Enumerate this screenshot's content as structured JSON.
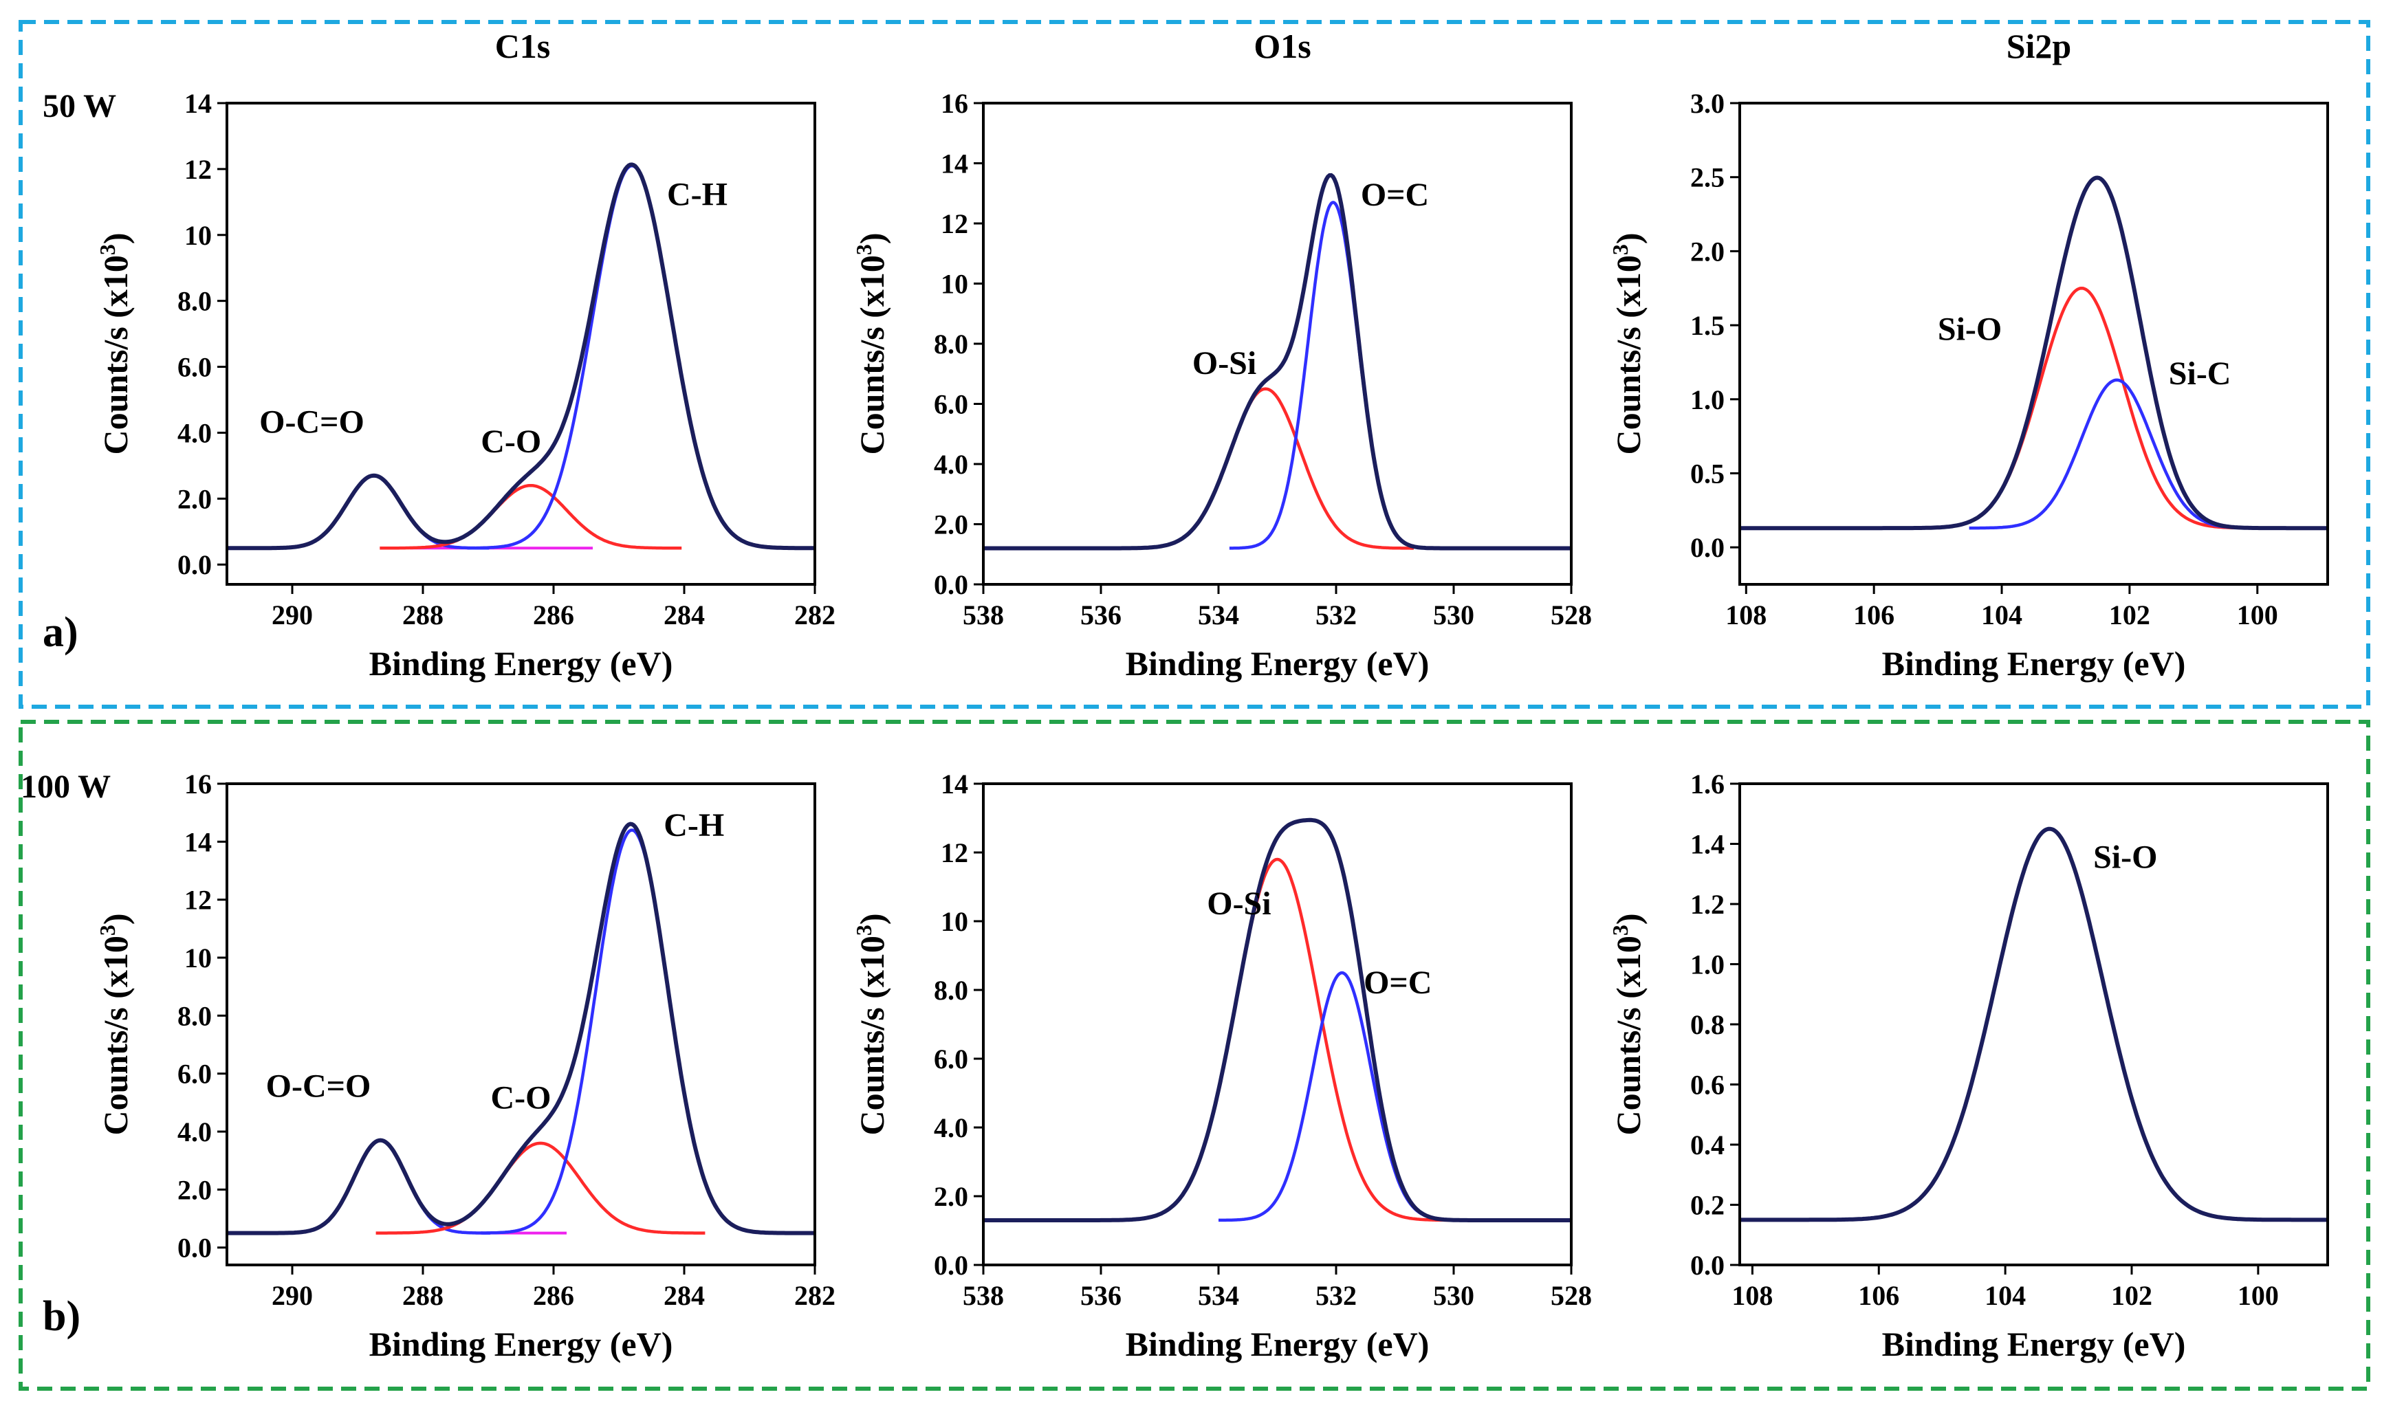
{
  "figure": {
    "column_titles": [
      "C1s",
      "O1s",
      "Si2p"
    ],
    "rows": [
      {
        "power_label": "50 W",
        "panel_label": "a)",
        "border_color": "#1ea8e0"
      },
      {
        "power_label": "100 W",
        "panel_label": "b)",
        "border_color": "#24a24a"
      }
    ],
    "colors": {
      "envelope": "#1b1e5c",
      "red": "#ff2a2a",
      "blue": "#2f2fff",
      "background_line": "#ee22ee"
    }
  },
  "chart_data": [
    {
      "type": "line",
      "title": "C1s",
      "row": 0,
      "col": 0,
      "xlabel": "Binding Energy (eV)",
      "ylabel": "Counts/s (x10",
      "ylabel_sup": "3",
      "ylabel_close": ")",
      "xlim": [
        291,
        282
      ],
      "ylim": [
        -0.6,
        14
      ],
      "xticks": [
        290,
        288,
        286,
        284,
        282
      ],
      "xtick_labels": [
        "290",
        "288",
        "286",
        "284",
        "282"
      ],
      "yticks": [
        0,
        2,
        4,
        6,
        8,
        10,
        12,
        14
      ],
      "ytick_labels": [
        "0.0",
        "2.0",
        "4.0",
        "6.0",
        "8.0",
        "10",
        "12",
        "14"
      ],
      "baseline": 0.5,
      "bg_line": [
        288.2,
        285.4
      ],
      "components": [
        {
          "name": "O-C=O",
          "center": 288.75,
          "height": 2.2,
          "sigma": 0.42,
          "color": "blue"
        },
        {
          "name": "C-O",
          "center": 286.35,
          "height": 1.9,
          "sigma": 0.55,
          "color": "red"
        },
        {
          "name": "C-H",
          "center": 284.8,
          "height": 11.6,
          "sigma": 0.6,
          "color": "blue"
        }
      ],
      "annotations": [
        {
          "text": "O-C=O",
          "x": 289.7,
          "y": 4.0
        },
        {
          "text": "C-O",
          "x": 286.65,
          "y": 3.4
        },
        {
          "text": "C-H",
          "x": 283.8,
          "y": 10.9
        }
      ]
    },
    {
      "type": "line",
      "title": "O1s",
      "row": 0,
      "col": 1,
      "xlabel": "Binding Energy (eV)",
      "ylabel": "Counts/s (x10",
      "ylabel_sup": "3",
      "ylabel_close": ")",
      "xlim": [
        538,
        528
      ],
      "ylim": [
        0,
        16
      ],
      "xticks": [
        538,
        536,
        534,
        532,
        530,
        528
      ],
      "xtick_labels": [
        "538",
        "536",
        "534",
        "532",
        "530",
        "528"
      ],
      "yticks": [
        0,
        2,
        4,
        6,
        8,
        10,
        12,
        14,
        16
      ],
      "ytick_labels": [
        "0.0",
        "2.0",
        "4.0",
        "6.0",
        "8.0",
        "10",
        "12",
        "14",
        "16"
      ],
      "baseline": 1.2,
      "components": [
        {
          "name": "O-Si",
          "center": 533.2,
          "height": 5.3,
          "sigma": 0.6,
          "color": "red"
        },
        {
          "name": "O=C",
          "center": 532.05,
          "height": 11.5,
          "sigma": 0.42,
          "color": "blue"
        }
      ],
      "annotations": [
        {
          "text": "O-Si",
          "x": 533.9,
          "y": 7.0
        },
        {
          "text": "O=C",
          "x": 531.0,
          "y": 12.6
        }
      ]
    },
    {
      "type": "line",
      "title": "Si2p",
      "row": 0,
      "col": 2,
      "xlabel": "Binding Energy (eV)",
      "ylabel": "Counts/s (x10",
      "ylabel_sup": "3",
      "ylabel_close": ")",
      "xlim": [
        108.1,
        98.9
      ],
      "ylim": [
        -0.25,
        3.0
      ],
      "xticks": [
        108,
        106,
        104,
        102,
        100
      ],
      "xtick_labels": [
        "108",
        "106",
        "104",
        "102",
        "100"
      ],
      "yticks": [
        0,
        0.5,
        1.0,
        1.5,
        2.0,
        2.5,
        3.0
      ],
      "ytick_labels": [
        "0.0",
        "0.5",
        "1.0",
        "1.5",
        "2.0",
        "2.5",
        "3.0"
      ],
      "baseline": 0.13,
      "components": [
        {
          "name": "Si-O",
          "center": 102.75,
          "height": 1.62,
          "sigma": 0.65,
          "color": "red"
        },
        {
          "name": "Si-C",
          "center": 102.2,
          "height": 1.0,
          "sigma": 0.55,
          "color": "blue"
        }
      ],
      "annotations": [
        {
          "text": "Si-O",
          "x": 104.5,
          "y": 1.4
        },
        {
          "text": "Si-C",
          "x": 100.9,
          "y": 1.1
        }
      ]
    },
    {
      "type": "line",
      "title": "C1s",
      "row": 1,
      "col": 0,
      "xlabel": "Binding Energy (eV)",
      "ylabel": "Counts/s (x10",
      "ylabel_sup": "3",
      "ylabel_close": ")",
      "xlim": [
        291,
        282
      ],
      "ylim": [
        -0.6,
        16
      ],
      "xticks": [
        290,
        288,
        286,
        284,
        282
      ],
      "xtick_labels": [
        "290",
        "288",
        "286",
        "284",
        "282"
      ],
      "yticks": [
        0,
        2,
        4,
        6,
        8,
        10,
        12,
        14,
        16
      ],
      "ytick_labels": [
        "0.0",
        "2.0",
        "4.0",
        "6.0",
        "8.0",
        "10",
        "12",
        "14",
        "16"
      ],
      "baseline": 0.5,
      "bg_line": [
        287.2,
        285.8
      ],
      "components": [
        {
          "name": "O-C=O",
          "center": 288.65,
          "height": 3.2,
          "sigma": 0.4,
          "color": "blue"
        },
        {
          "name": "C-O",
          "center": 286.2,
          "height": 3.1,
          "sigma": 0.6,
          "color": "red"
        },
        {
          "name": "C-H",
          "center": 284.8,
          "height": 13.9,
          "sigma": 0.55,
          "color": "blue"
        }
      ],
      "annotations": [
        {
          "text": "O-C=O",
          "x": 289.6,
          "y": 5.2
        },
        {
          "text": "C-O",
          "x": 286.5,
          "y": 4.8
        },
        {
          "text": "C-H",
          "x": 283.85,
          "y": 14.2
        }
      ]
    },
    {
      "type": "line",
      "title": "O1s",
      "row": 1,
      "col": 1,
      "xlabel": "Binding Energy (eV)",
      "ylabel": "Counts/s (x10",
      "ylabel_sup": "3",
      "ylabel_close": ")",
      "xlim": [
        538,
        528
      ],
      "ylim": [
        0,
        14
      ],
      "xticks": [
        538,
        536,
        534,
        532,
        530,
        528
      ],
      "xtick_labels": [
        "538",
        "536",
        "534",
        "532",
        "530",
        "528"
      ],
      "yticks": [
        0,
        2,
        4,
        6,
        8,
        10,
        12,
        14
      ],
      "ytick_labels": [
        "0.0",
        "2.0",
        "4.0",
        "6.0",
        "8.0",
        "10",
        "12",
        "14"
      ],
      "baseline": 1.3,
      "components": [
        {
          "name": "O-Si",
          "center": 533.0,
          "height": 10.5,
          "sigma": 0.7,
          "color": "red"
        },
        {
          "name": "O=C",
          "center": 531.9,
          "height": 7.2,
          "sigma": 0.5,
          "color": "blue"
        }
      ],
      "annotations": [
        {
          "text": "O-Si",
          "x": 533.65,
          "y": 10.2
        },
        {
          "text": "O=C",
          "x": 530.95,
          "y": 7.9
        }
      ]
    },
    {
      "type": "line",
      "title": "Si2p",
      "row": 1,
      "col": 2,
      "xlabel": "Binding Energy (eV)",
      "ylabel": "Counts/s (x10",
      "ylabel_sup": "3",
      "ylabel_close": ")",
      "xlim": [
        108.2,
        98.9
      ],
      "ylim": [
        0,
        1.6
      ],
      "xticks": [
        108,
        106,
        104,
        102,
        100
      ],
      "xtick_labels": [
        "108",
        "106",
        "104",
        "102",
        "100"
      ],
      "yticks": [
        0,
        0.2,
        0.4,
        0.6,
        0.8,
        1.0,
        1.2,
        1.4,
        1.6
      ],
      "ytick_labels": [
        "0.0",
        "0.2",
        "0.4",
        "0.6",
        "0.8",
        "1.0",
        "1.2",
        "1.4",
        "1.6"
      ],
      "baseline": 0.15,
      "components": [
        {
          "name": "Si-O",
          "center": 103.3,
          "height": 1.3,
          "sigma": 0.85,
          "color": "none"
        }
      ],
      "annotations": [
        {
          "text": "Si-O",
          "x": 102.1,
          "y": 1.32
        }
      ]
    }
  ]
}
